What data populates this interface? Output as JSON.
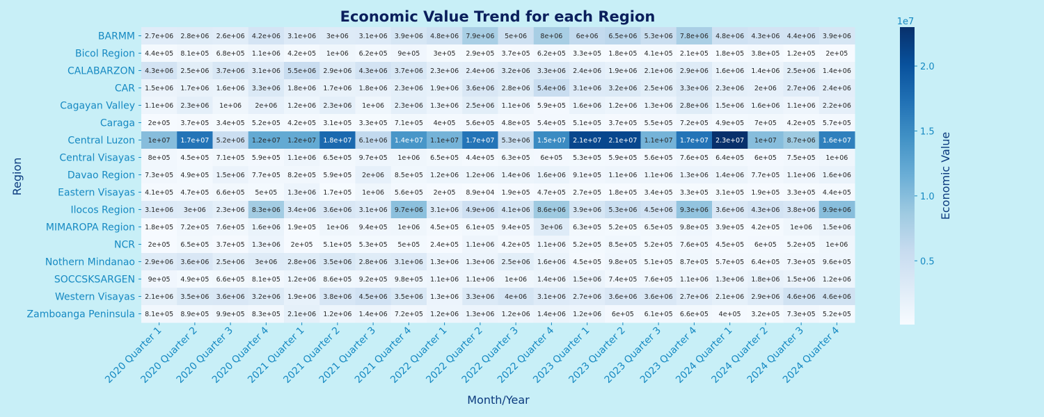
{
  "chart_data": {
    "type": "heatmap",
    "title": "Economic Value Trend for each Region",
    "xlabel": "Month/Year",
    "ylabel": "Region",
    "colorbar_label": "Economic Value",
    "colorbar_multiplier": "1e7",
    "colorbar_ticks": [
      "0.5",
      "1.0",
      "1.5",
      "2.0"
    ],
    "colorbar_tick_values": [
      5000000,
      10000000,
      15000000,
      20000000
    ],
    "value_range": [
      89000,
      23000000
    ],
    "colormap": "Blues",
    "x": [
      "2020 Quarter 1",
      "2020 Quarter 2",
      "2020 Quarter 3",
      "2020 Quarter 4",
      "2021 Quarter 1",
      "2021 Quarter 2",
      "2021 Quarter 3",
      "2021 Quarter 4",
      "2022 Quarter 1",
      "2022 Quarter 2",
      "2022 Quarter 3",
      "2022 Quarter 4",
      "2023 Quarter 1",
      "2023 Quarter 2",
      "2023 Quarter 3",
      "2023 Quarter 4",
      "2024 Quarter 1",
      "2024 Quarter 2",
      "2024 Quarter 3",
      "2024 Quarter 4"
    ],
    "y": [
      "BARMM",
      "Bicol Region",
      "CALABARZON",
      "CAR",
      "Cagayan Valley",
      "Caraga",
      "Central Luzon",
      "Central Visayas",
      "Davao Region",
      "Eastern Visayas",
      "Ilocos Region",
      "MIMAROPA Region",
      "NCR",
      "Nothern Mindanao",
      "SOCCSKSARGEN",
      "Western Visayas",
      "Zamboanga Peninsula"
    ],
    "labels": [
      [
        "2.7e+06",
        "2.8e+06",
        "2.6e+06",
        "4.2e+06",
        "3.1e+06",
        "3e+06",
        "3.1e+06",
        "3.9e+06",
        "4.8e+06",
        "7.9e+06",
        "5e+06",
        "8e+06",
        "6e+06",
        "6.5e+06",
        "5.3e+06",
        "7.8e+06",
        "4.8e+06",
        "4.3e+06",
        "4.4e+06",
        "3.9e+06"
      ],
      [
        "4.4e+05",
        "8.1e+05",
        "6.8e+05",
        "1.1e+06",
        "4.2e+05",
        "1e+06",
        "6.2e+05",
        "9e+05",
        "3e+05",
        "2.9e+05",
        "3.7e+05",
        "6.2e+05",
        "3.3e+05",
        "1.8e+05",
        "4.1e+05",
        "2.1e+05",
        "1.8e+05",
        "3.8e+05",
        "1.2e+05",
        "2e+05"
      ],
      [
        "4.3e+06",
        "2.5e+06",
        "3.7e+06",
        "3.1e+06",
        "5.5e+06",
        "2.9e+06",
        "4.3e+06",
        "3.7e+06",
        "2.3e+06",
        "2.4e+06",
        "3.2e+06",
        "3.3e+06",
        "2.4e+06",
        "1.9e+06",
        "2.1e+06",
        "2.9e+06",
        "1.6e+06",
        "1.4e+06",
        "2.5e+06",
        "1.4e+06"
      ],
      [
        "1.5e+06",
        "1.7e+06",
        "1.6e+06",
        "3.3e+06",
        "1.8e+06",
        "1.7e+06",
        "1.8e+06",
        "2.3e+06",
        "1.9e+06",
        "3.6e+06",
        "2.8e+06",
        "5.4e+06",
        "3.1e+06",
        "3.2e+06",
        "2.5e+06",
        "3.3e+06",
        "2.3e+06",
        "2e+06",
        "2.7e+06",
        "2.4e+06"
      ],
      [
        "1.1e+06",
        "2.3e+06",
        "1e+06",
        "2e+06",
        "1.2e+06",
        "2.3e+06",
        "1e+06",
        "2.3e+06",
        "1.3e+06",
        "2.5e+06",
        "1.1e+06",
        "5.9e+05",
        "1.6e+06",
        "1.2e+06",
        "1.3e+06",
        "2.8e+06",
        "1.5e+06",
        "1.6e+06",
        "1.1e+06",
        "2.2e+06"
      ],
      [
        "2e+05",
        "3.7e+05",
        "3.4e+05",
        "5.2e+05",
        "4.2e+05",
        "3.1e+05",
        "3.3e+05",
        "7.1e+05",
        "4e+05",
        "5.6e+05",
        "4.8e+05",
        "5.4e+05",
        "5.1e+05",
        "3.7e+05",
        "5.5e+05",
        "7.2e+05",
        "4.9e+05",
        "7e+05",
        "4.2e+05",
        "5.7e+05"
      ],
      [
        "1e+07",
        "1.7e+07",
        "5.2e+06",
        "1.2e+07",
        "1.2e+07",
        "1.8e+07",
        "6.1e+06",
        "1.4e+07",
        "1.1e+07",
        "1.7e+07",
        "5.3e+06",
        "1.5e+07",
        "2.1e+07",
        "2.1e+07",
        "1.1e+07",
        "1.7e+07",
        "2.3e+07",
        "1e+07",
        "8.7e+06",
        "1.6e+07"
      ],
      [
        "8e+05",
        "4.5e+05",
        "7.1e+05",
        "5.9e+05",
        "1.1e+06",
        "6.5e+05",
        "9.7e+05",
        "1e+06",
        "6.5e+05",
        "4.4e+05",
        "6.3e+05",
        "6e+05",
        "5.3e+05",
        "5.9e+05",
        "5.6e+05",
        "7.6e+05",
        "6.4e+05",
        "6e+05",
        "7.5e+05",
        "1e+06"
      ],
      [
        "7.3e+05",
        "4.9e+05",
        "1.5e+06",
        "7.7e+05",
        "8.2e+05",
        "5.9e+05",
        "2e+06",
        "8.5e+05",
        "1.2e+06",
        "1.2e+06",
        "1.4e+06",
        "1.6e+06",
        "9.1e+05",
        "1.1e+06",
        "1.1e+06",
        "1.3e+06",
        "1.4e+06",
        "7.7e+05",
        "1.1e+06",
        "1.6e+06"
      ],
      [
        "4.1e+05",
        "4.7e+05",
        "6.6e+05",
        "5e+05",
        "1.3e+06",
        "1.7e+05",
        "1e+06",
        "5.6e+05",
        "2e+05",
        "8.9e+04",
        "1.9e+05",
        "4.7e+05",
        "2.7e+05",
        "1.8e+05",
        "3.4e+05",
        "3.3e+05",
        "3.1e+05",
        "1.9e+05",
        "3.3e+05",
        "4.4e+05"
      ],
      [
        "3.1e+06",
        "3e+06",
        "2.3e+06",
        "8.3e+06",
        "3.4e+06",
        "3.6e+06",
        "3.1e+06",
        "9.7e+06",
        "3.1e+06",
        "4.9e+06",
        "4.1e+06",
        "8.6e+06",
        "3.9e+06",
        "5.3e+06",
        "4.5e+06",
        "9.3e+06",
        "3.6e+06",
        "4.3e+06",
        "3.8e+06",
        "9.9e+06"
      ],
      [
        "1.8e+05",
        "7.2e+05",
        "7.6e+05",
        "1.6e+06",
        "1.9e+05",
        "1e+06",
        "9.4e+05",
        "1e+06",
        "4.5e+05",
        "6.1e+05",
        "9.4e+05",
        "3e+06",
        "6.3e+05",
        "5.2e+05",
        "6.5e+05",
        "9.8e+05",
        "3.9e+05",
        "4.2e+05",
        "1e+06",
        "1.5e+06"
      ],
      [
        "2e+05",
        "6.5e+05",
        "3.7e+05",
        "1.3e+06",
        "2e+05",
        "5.1e+05",
        "5.3e+05",
        "5e+05",
        "2.4e+05",
        "1.1e+06",
        "4.2e+05",
        "1.1e+06",
        "5.2e+05",
        "8.5e+05",
        "5.2e+05",
        "7.6e+05",
        "4.5e+05",
        "6e+05",
        "5.2e+05",
        "1e+06"
      ],
      [
        "2.9e+06",
        "3.6e+06",
        "2.5e+06",
        "3e+06",
        "2.8e+06",
        "3.5e+06",
        "2.8e+06",
        "3.1e+06",
        "1.3e+06",
        "1.3e+06",
        "2.5e+06",
        "1.6e+06",
        "4.5e+05",
        "9.8e+05",
        "5.1e+05",
        "8.7e+05",
        "5.7e+05",
        "6.4e+05",
        "7.3e+05",
        "9.6e+05"
      ],
      [
        "9e+05",
        "4.9e+05",
        "6.6e+05",
        "8.1e+05",
        "1.2e+06",
        "8.6e+05",
        "9.2e+05",
        "9.8e+05",
        "1.1e+06",
        "1.1e+06",
        "1e+06",
        "1.4e+06",
        "1.5e+06",
        "7.4e+05",
        "7.6e+05",
        "1.1e+06",
        "1.3e+06",
        "1.8e+06",
        "1.5e+06",
        "1.2e+06"
      ],
      [
        "2.1e+06",
        "3.5e+06",
        "3.6e+06",
        "3.2e+06",
        "1.9e+06",
        "3.8e+06",
        "4.5e+06",
        "3.5e+06",
        "1.3e+06",
        "3.3e+06",
        "4e+06",
        "3.1e+06",
        "2.7e+06",
        "3.6e+06",
        "3.6e+06",
        "2.7e+06",
        "2.1e+06",
        "2.9e+06",
        "4.6e+06",
        "4.6e+06"
      ],
      [
        "8.1e+05",
        "8.9e+05",
        "9.9e+05",
        "8.3e+05",
        "2.1e+06",
        "1.2e+06",
        "1.4e+06",
        "7.2e+05",
        "1.2e+06",
        "1.3e+06",
        "1.2e+06",
        "1.4e+06",
        "1.2e+06",
        "6e+05",
        "6.1e+05",
        "6.6e+05",
        "4e+05",
        "3.2e+05",
        "7.3e+05",
        "5.2e+05"
      ]
    ]
  }
}
